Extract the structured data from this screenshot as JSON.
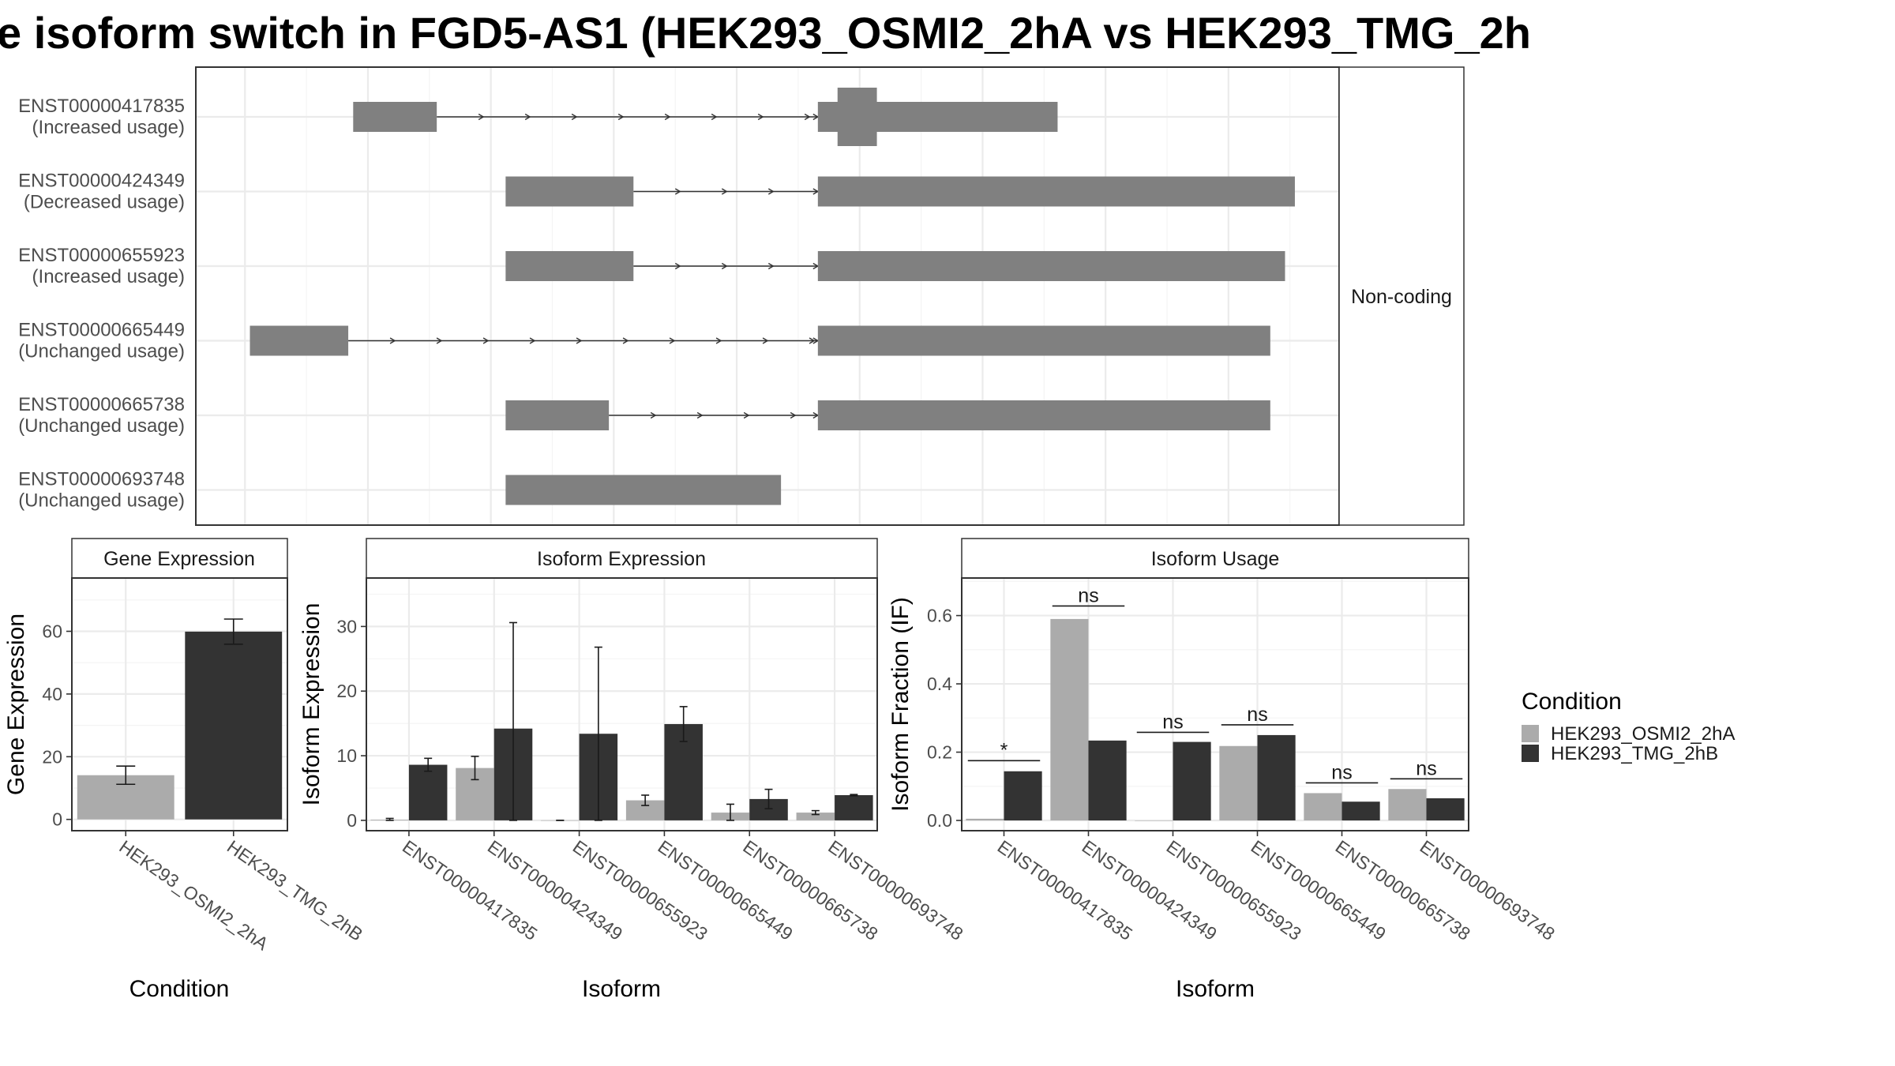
{
  "title": "e isoform switch in FGD5-AS1 (HEK293_OSMI2_2hA vs HEK293_TMG_2h",
  "colors": {
    "HEK293_OSMI2_2hA": "#ababab",
    "HEK293_TMG_2hB": "#333333",
    "exon": "#808080"
  },
  "legend": {
    "title": "Condition",
    "items": [
      "HEK293_OSMI2_2hA",
      "HEK293_TMG_2hB"
    ]
  },
  "structure_strip": "Non-coding",
  "chart_data": [
    {
      "type": "gene-structure",
      "transcripts": [
        {
          "id": "ENST00000417835",
          "status": "(Increased usage)",
          "exons": [
            [
              0.88,
              1.56
            ],
            [
              4.66,
              6.61
            ]
          ],
          "tall": [
            [
              4.82,
              5.14
            ]
          ]
        },
        {
          "id": "ENST00000424349",
          "status": "(Decreased usage)",
          "exons": [
            [
              2.12,
              3.16
            ],
            [
              4.66,
              8.54
            ]
          ]
        },
        {
          "id": "ENST00000655923",
          "status": "(Increased usage)",
          "exons": [
            [
              2.12,
              3.16
            ],
            [
              4.66,
              8.46
            ]
          ]
        },
        {
          "id": "ENST00000665449",
          "status": "(Unchanged usage)",
          "exons": [
            [
              0.04,
              0.84
            ],
            [
              4.66,
              8.34
            ]
          ]
        },
        {
          "id": "ENST00000665738",
          "status": "(Unchanged usage)",
          "exons": [
            [
              2.12,
              2.96
            ],
            [
              4.66,
              8.34
            ]
          ]
        },
        {
          "id": "ENST00000693748",
          "status": "(Unchanged usage)",
          "exons": [
            [
              2.12,
              4.36
            ]
          ]
        }
      ]
    },
    {
      "type": "bar",
      "title": "Gene Expression",
      "xlabel": "Condition",
      "ylabel": "Gene Expression",
      "categories": [
        "HEK293_OSMI2_2hA",
        "HEK293_TMG_2hB"
      ],
      "values": [
        14.1,
        59.9
      ],
      "errors": [
        [
          11.2,
          17.0
        ],
        [
          55.9,
          63.9
        ]
      ],
      "ylim": [
        -3.6,
        77
      ],
      "yticks": [
        0,
        20,
        40,
        60
      ]
    },
    {
      "type": "bar",
      "title": "Isoform Expression",
      "xlabel": "Isoform",
      "ylabel": "Isoform Expression",
      "categories": [
        "ENST00000417835",
        "ENST00000424349",
        "ENST00000655923",
        "ENST00000665449",
        "ENST00000665738",
        "ENST00000693748"
      ],
      "series": [
        {
          "name": "HEK293_OSMI2_2hA",
          "values": [
            0.1,
            8.1,
            0.0,
            3.1,
            1.2,
            1.2
          ],
          "errors": [
            [
              0.0,
              0.3
            ],
            [
              6.3,
              9.9
            ],
            [
              0.0,
              0.0
            ],
            [
              2.3,
              3.9
            ],
            [
              0.0,
              2.5
            ],
            [
              0.9,
              1.5
            ]
          ]
        },
        {
          "name": "HEK293_TMG_2hB",
          "values": [
            8.6,
            14.2,
            13.4,
            14.9,
            3.3,
            3.9
          ],
          "errors": [
            [
              7.6,
              9.6
            ],
            [
              0.0,
              30.6
            ],
            [
              0.0,
              26.8
            ],
            [
              12.2,
              17.6
            ],
            [
              1.8,
              4.8
            ],
            [
              3.8,
              4.0
            ]
          ]
        }
      ],
      "ylim": [
        -1.6,
        37.5
      ],
      "yticks": [
        0,
        10,
        20,
        30
      ]
    },
    {
      "type": "bar",
      "title": "Isoform Usage",
      "xlabel": "Isoform",
      "ylabel": "Isoform Fraction (IF)",
      "categories": [
        "ENST00000417835",
        "ENST00000424349",
        "ENST00000655923",
        "ENST00000665449",
        "ENST00000665738",
        "ENST00000693748"
      ],
      "series": [
        {
          "name": "HEK293_OSMI2_2hA",
          "values": [
            0.005,
            0.59,
            0.0,
            0.218,
            0.08,
            0.092
          ]
        },
        {
          "name": "HEK293_TMG_2hB",
          "values": [
            0.144,
            0.234,
            0.23,
            0.25,
            0.055,
            0.065
          ]
        }
      ],
      "significance": [
        "*",
        "ns",
        "ns",
        "ns",
        "ns",
        "ns"
      ],
      "sig_y": [
        0.175,
        0.628,
        0.258,
        0.28,
        0.11,
        0.122
      ],
      "ylim": [
        -0.03,
        0.71
      ],
      "yticks": [
        0.0,
        0.2,
        0.4,
        0.6
      ],
      "ytick_labels": [
        "0.0",
        "0.2",
        "0.4",
        "0.6"
      ]
    }
  ]
}
